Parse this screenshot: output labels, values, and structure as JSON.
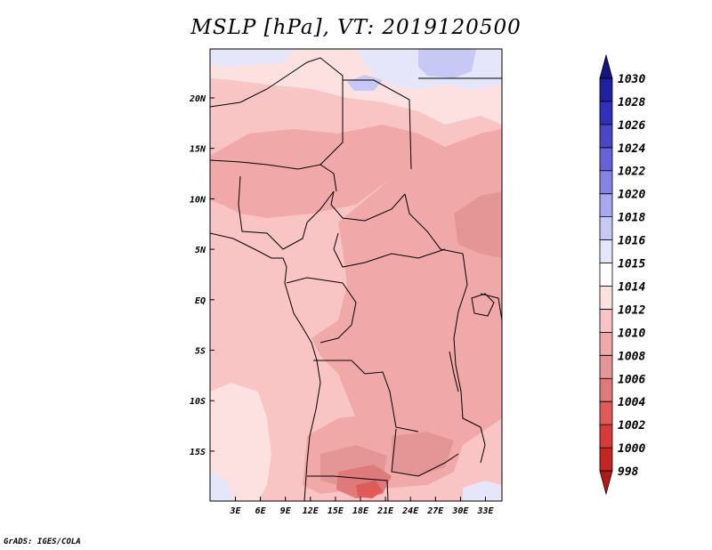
{
  "title": "MSLP [hPa], VT: 2019120500",
  "credit": "GrADS: IGES/COLA",
  "map": {
    "x_ticks": [
      "3E",
      "6E",
      "9E",
      "12E",
      "15E",
      "18E",
      "21E",
      "24E",
      "27E",
      "30E",
      "33E"
    ],
    "y_ticks": [
      "20N",
      "15N",
      "10N",
      "5N",
      "EQ",
      "5S",
      "10S",
      "15S"
    ]
  },
  "colorbar": {
    "levels": [
      "998",
      "1000",
      "1002",
      "1004",
      "1006",
      "1008",
      "1010",
      "1012",
      "1014",
      "1015",
      "1016",
      "1018",
      "1020",
      "1022",
      "1024",
      "1026",
      "1028",
      "1030"
    ],
    "colors": [
      "#b01a1a",
      "#c42424",
      "#d63a3a",
      "#e05a5a",
      "#de7a7a",
      "#e49696",
      "#f0a8a8",
      "#f8c4c4",
      "#fde0e0",
      "#ffffff",
      "#e6e6fa",
      "#c8c8f4",
      "#a8a8ee",
      "#8484e4",
      "#6464d8",
      "#4848c8",
      "#3030b8",
      "#2020a0",
      "#141488"
    ]
  },
  "field_colors": {
    "p1004": "#e05a5a",
    "p1006": "#de7a7a",
    "p1008": "#e49696",
    "p1010": "#f0a8a8",
    "p1012": "#f8c4c4",
    "p1014": "#fde0e0",
    "p1016": "#e6e6fa",
    "p1018": "#c8c8f4",
    "p1020": "#a8a8ee"
  }
}
